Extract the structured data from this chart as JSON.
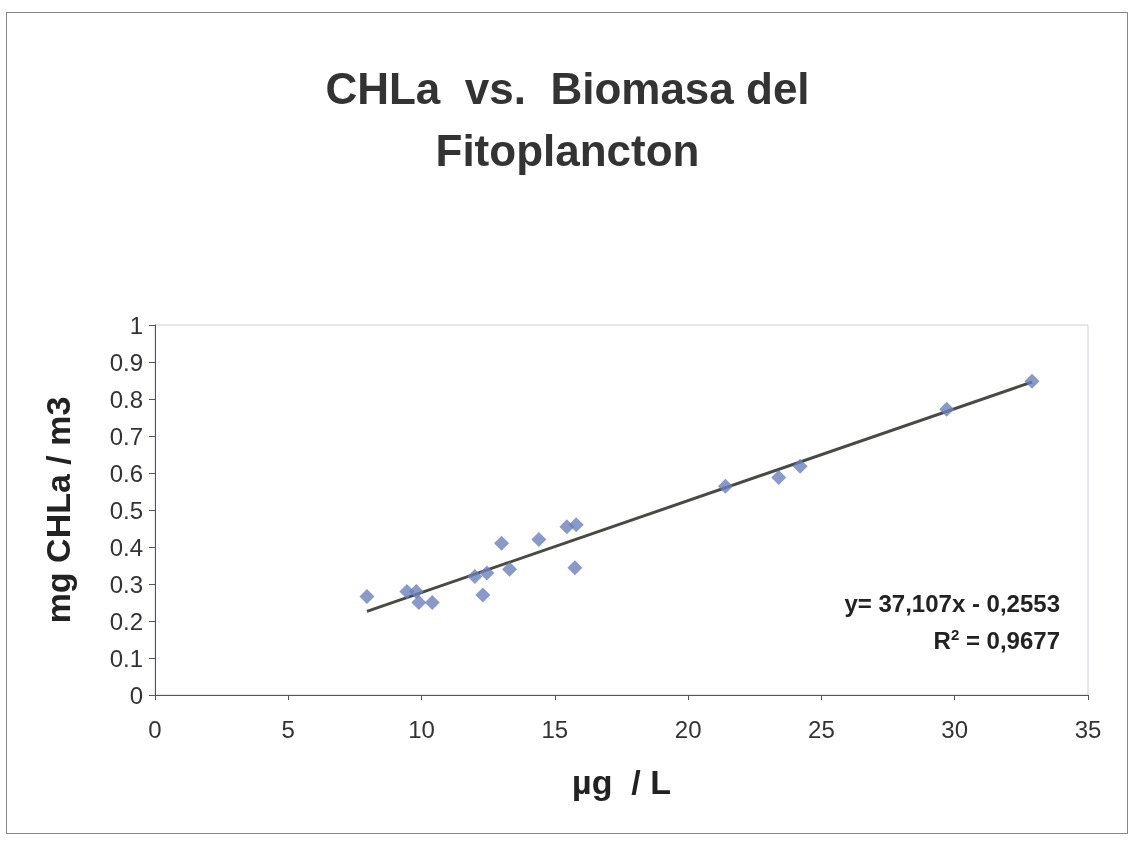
{
  "chart_data": {
    "type": "scatter",
    "title": "CHLa  vs.  Biomasa del\nFitoplancton",
    "xlabel": "µg  / L",
    "ylabel": "mg CHLa / m3",
    "annotations": [
      "y= 37,107x - 0,2553\nR$^{2}$ = 0,9677"
    ],
    "xlim": [
      0,
      35
    ],
    "xticks": [
      0,
      5,
      10,
      15,
      20,
      25,
      30,
      35
    ],
    "ylim": [
      0,
      1
    ],
    "yticks": [
      0,
      0.1,
      0.2,
      0.3,
      0.4,
      0.5,
      0.6,
      0.7,
      0.8,
      0.9,
      1
    ],
    "marker": "diamond",
    "series": [
      {
        "color": "#6b80ba",
        "x": [
          7.95,
          9.45,
          9.8,
          9.9,
          10.4,
          12.0,
          12.45,
          12.3,
          13.0,
          13.3,
          14.4,
          15.45,
          15.8,
          15.75,
          21.4,
          23.4,
          24.2,
          29.7,
          32.9
        ],
        "values": [
          0.266,
          0.28,
          0.28,
          0.25,
          0.25,
          0.32,
          0.33,
          0.27,
          0.41,
          0.34,
          0.42,
          0.455,
          0.46,
          0.344,
          0.564,
          0.588,
          0.618,
          0.772,
          0.848
        ]
      },
      {
        "type": "line",
        "marker": "none",
        "color": "#4a4a44",
        "x": [
          7.95,
          32.9
        ],
        "values": [
          0.226,
          0.846
        ]
      }
    ]
  }
}
